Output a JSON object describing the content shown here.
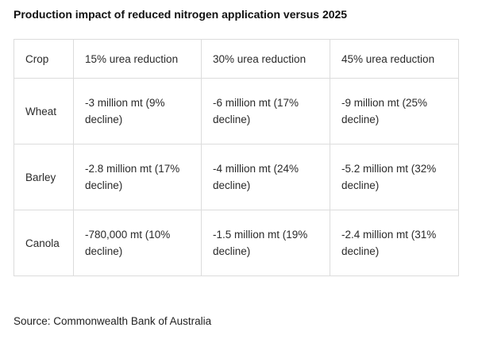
{
  "title": "Production impact of reduced nitrogen application versus 2025",
  "table": {
    "headers": [
      "Crop",
      "15% urea reduction",
      "30% urea reduction",
      "45% urea reduction"
    ],
    "rows": [
      {
        "crop": "Wheat",
        "cells": [
          "-3 million mt (9% decline)",
          "-6 million mt (17% decline)",
          "-9 million mt (25% decline)"
        ]
      },
      {
        "crop": "Barley",
        "cells": [
          "-2.8 million mt (17% decline)",
          "-4 million mt (24% decline)",
          "-5.2 million mt (32% decline)"
        ]
      },
      {
        "crop": "Canola",
        "cells": [
          "-780,000 mt (10% decline)",
          "-1.5 million mt (19% decline)",
          "-2.4 million mt (31% decline)"
        ]
      }
    ]
  },
  "source": "Source: Commonwealth Bank of Australia"
}
